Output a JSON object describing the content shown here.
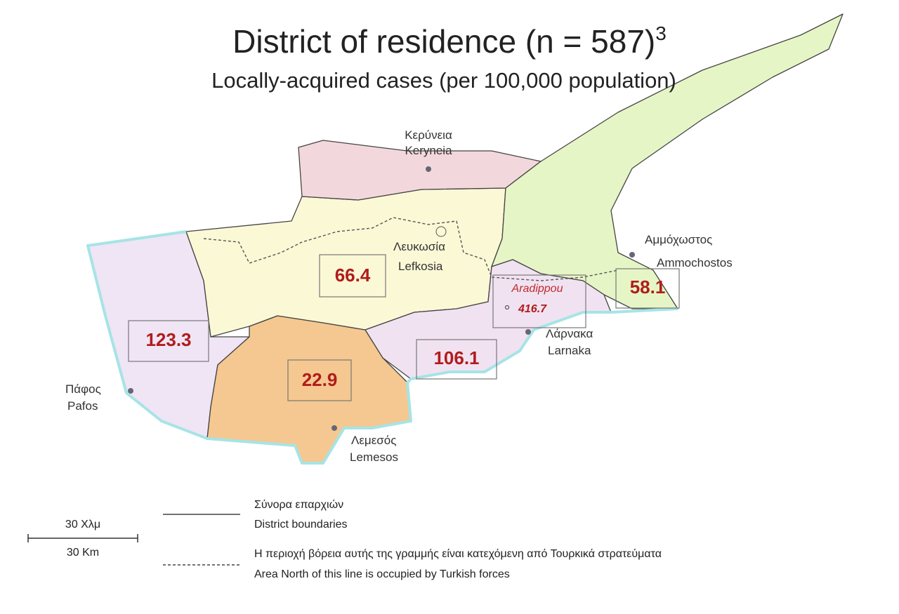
{
  "title": {
    "text": "District of residence (n = 587)",
    "superscript": "3"
  },
  "subtitle": "Locally-acquired cases (per 100,000 population)",
  "districts": [
    {
      "greek": "Κερύνεια",
      "english": "Keryneia"
    },
    {
      "greek": "Λευκωσία",
      "english": "Lefkosia",
      "value": 66.4
    },
    {
      "greek": "Αμμόχωστος",
      "english": "Ammochostos",
      "value": 58.1
    },
    {
      "greek": "Λάρνακα",
      "english": "Larnaka",
      "value": 106.1
    },
    {
      "greek": "Πάφος",
      "english": "Pafos",
      "value": 123.3
    },
    {
      "greek": "Λεμεσός",
      "english": "Lemesos",
      "value": 22.9
    }
  ],
  "aradippou": {
    "name": "Aradippou",
    "value": 416.7
  },
  "scale": {
    "greek": "30 Χλμ",
    "english": "30 Km"
  },
  "legend": [
    {
      "greek": "Σύνορα επαρχιών",
      "english": "District boundaries"
    },
    {
      "greek": "Η περιοχή βόρεια αυτής της γραμμής είναι κατεχόμενη από Τουρκικά στρατεύματα",
      "english": "Area North of this line is occupied by Turkish forces"
    }
  ]
}
